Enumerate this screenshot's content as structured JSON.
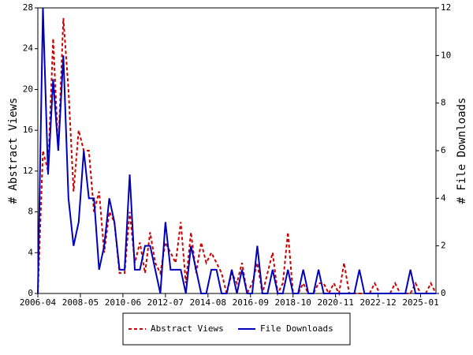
{
  "chart_data": {
    "type": "line",
    "x": [
      "2006-04",
      "2006-07",
      "2006-10",
      "2007-01",
      "2007-04",
      "2007-07",
      "2007-10",
      "2008-01",
      "2008-04",
      "2008-07",
      "2008-10",
      "2009-01",
      "2009-04",
      "2009-07",
      "2009-10",
      "2010-01",
      "2010-04",
      "2010-07",
      "2010-10",
      "2011-01",
      "2011-04",
      "2011-07",
      "2011-10",
      "2012-01",
      "2012-04",
      "2012-07",
      "2012-10",
      "2013-01",
      "2013-04",
      "2013-07",
      "2013-10",
      "2014-01",
      "2014-04",
      "2014-07",
      "2014-10",
      "2015-01",
      "2015-04",
      "2015-07",
      "2015-10",
      "2016-01",
      "2016-04",
      "2016-07",
      "2016-10",
      "2017-01",
      "2017-04",
      "2017-07",
      "2017-10",
      "2018-01",
      "2018-04",
      "2018-07",
      "2018-10",
      "2019-01",
      "2019-04",
      "2019-07",
      "2019-10",
      "2020-01",
      "2020-04",
      "2020-07",
      "2020-10",
      "2021-01",
      "2021-04",
      "2021-07",
      "2021-10",
      "2022-01",
      "2022-04",
      "2022-07",
      "2022-10",
      "2023-01",
      "2023-04",
      "2023-07",
      "2023-10",
      "2024-01",
      "2024-04",
      "2024-07",
      "2024-10",
      "2025-01",
      "2025-04",
      "2025-07",
      "2025-10"
    ],
    "series": [
      {
        "name": "Abstract Views",
        "color": "#cc0000",
        "dash": true,
        "axis": "y",
        "values": [
          0,
          14,
          12,
          25,
          14,
          27,
          20,
          10,
          16,
          14,
          14,
          8,
          10,
          4,
          8,
          7,
          2,
          2,
          8,
          3,
          5,
          2,
          6,
          3,
          2,
          5,
          4,
          3,
          7,
          1,
          6,
          2,
          5,
          3,
          4,
          3,
          2,
          0,
          2,
          1,
          3,
          0,
          1,
          3,
          0,
          2,
          4,
          0,
          1,
          6,
          0,
          0,
          1,
          0,
          0,
          1,
          1,
          0,
          1,
          0,
          3,
          0,
          0,
          0,
          0,
          0,
          1,
          0,
          0,
          0,
          1,
          0,
          0,
          0,
          1,
          0,
          0,
          1,
          0
        ]
      },
      {
        "name": "File Downloads",
        "color": "#0000bb",
        "dash": false,
        "axis": "y2",
        "values": [
          0,
          12,
          5,
          9,
          6,
          10,
          4,
          2,
          3,
          6,
          4,
          4,
          1,
          2,
          4,
          3,
          1,
          1,
          5,
          1,
          1,
          2,
          2,
          1,
          0,
          3,
          1,
          1,
          1,
          0,
          2,
          1,
          0,
          0,
          1,
          1,
          0,
          0,
          1,
          0,
          1,
          0,
          0,
          2,
          0,
          0,
          1,
          0,
          0,
          1,
          0,
          0,
          1,
          0,
          0,
          1,
          0,
          0,
          0,
          0,
          0,
          0,
          0,
          1,
          0,
          0,
          0,
          0,
          0,
          0,
          0,
          0,
          0,
          1,
          0,
          0,
          0,
          0,
          0
        ]
      }
    ],
    "xlim": [
      "2006-04",
      "2025-10"
    ],
    "xticks": [
      "2006-04",
      "2008-05",
      "2010-06",
      "2012-07",
      "2014-08",
      "2016-09",
      "2018-10",
      "2020-11",
      "2022-12",
      "2025-01"
    ],
    "ylabel": "# Abstract Views",
    "ylim": [
      0,
      28
    ],
    "yticks": [
      0,
      4,
      8,
      12,
      16,
      20,
      24,
      28
    ],
    "y2label": "# File Downloads",
    "y2lim": [
      0,
      12
    ],
    "y2ticks": [
      0,
      2,
      4,
      6,
      8,
      10,
      12
    ]
  }
}
